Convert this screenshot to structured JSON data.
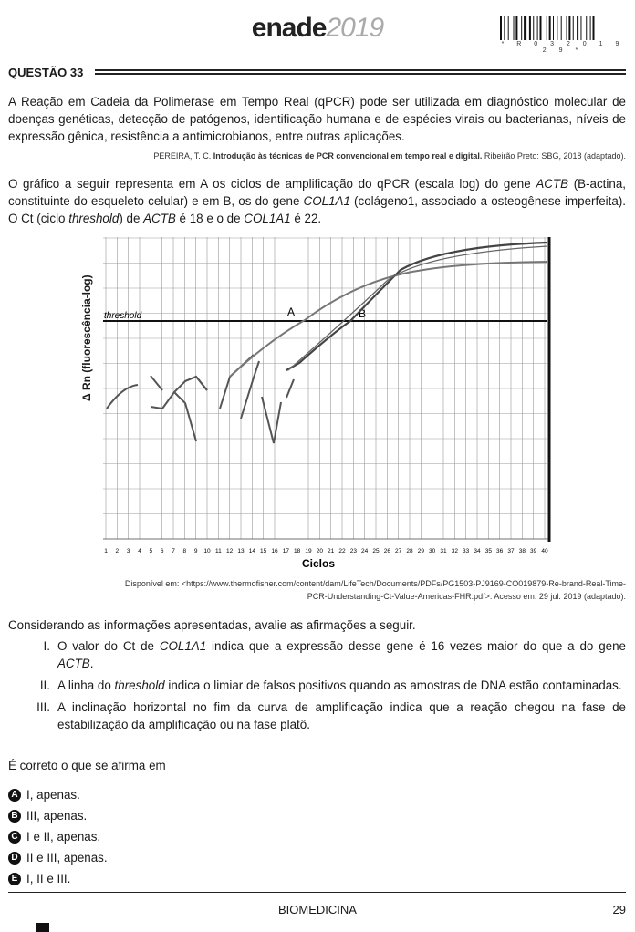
{
  "header": {
    "logo_word": "enade",
    "logo_year": "2019",
    "barcode_text": "* R 0 3 2 0 1 9 2 9 *"
  },
  "question": {
    "title": "QUESTÃO 33",
    "paragraph1": "A Reação em Cadeia da Polimerase em Tempo Real (qPCR) pode ser utilizada em diagnóstico molecular de doenças genéticas, detecção de patógenos, identificação humana e de espécies virais ou bacterianas, níveis de expressão gênica, resistência a antimicrobianos, entre outras aplicações.",
    "ref1_author": "PEREIRA, T. C.",
    "ref1_title": "Introdução às técnicas de PCR convencional em tempo real e digital.",
    "ref1_rest": "Ribeirão Preto: SBG, 2018 (adaptado).",
    "p2_a": "O gráfico a seguir representa em A os ciclos de amplificação do qPCR (escala log) do gene ",
    "p2_b": "ACTB",
    "p2_c": " (B-actina, constituinte do esqueleto celular) e em B, os do gene ",
    "p2_d": "COL1A1",
    "p2_e": " (colágeno1, associado a osteogênese imperfeita). O Ct (ciclo ",
    "p2_f": "threshold",
    "p2_g": ") de ",
    "p2_h": "ACTB",
    "p2_i": " é 18 e o de ",
    "p2_j": "COL1A1",
    "p2_k": " é 22.",
    "source_line1": "Disponível em: <https://www.thermofisher.com/content/dam/LifeTech/Documents/PDFs/PG1503-PJ9169-CO019879-Re-brand-Real-Time-",
    "source_line2": "PCR-Understanding-Ct-Value-Americas-FHR.pdf>. Acesso em: 29 jul. 2019 (adaptado).",
    "prompt": "Considerando as informações apresentadas, avalie as afirmações a seguir.",
    "statements": [
      {
        "num": "I.",
        "a": "O valor do Ct de ",
        "b": "COL1A1",
        "c": " indica que a expressão desse gene é 16 vezes maior do que a do gene ",
        "d": "ACTB",
        "e": "."
      },
      {
        "num": "II.",
        "a": "A linha do ",
        "b": "threshold",
        "c": " indica o limiar de falsos positivos quando as amostras de DNA estão contaminadas."
      },
      {
        "num": "III.",
        "a": "A inclinação horizontal no fim da curva de amplificação indica que a reação chegou na fase de estabilização da amplificação ou na fase platô."
      }
    ],
    "ask": "É correto o que se afirma em",
    "options": [
      {
        "letter": "A",
        "text": "I, apenas."
      },
      {
        "letter": "B",
        "text": "III, apenas."
      },
      {
        "letter": "C",
        "text": "I e II, apenas."
      },
      {
        "letter": "D",
        "text": "II e III, apenas."
      },
      {
        "letter": "E",
        "text": "I, II e III."
      }
    ]
  },
  "chart_data": {
    "type": "line",
    "xlabel": "Ciclos",
    "ylabel": "Δ Rn (fluorescência-log)",
    "x_ticks": [
      1,
      2,
      3,
      4,
      5,
      6,
      7,
      8,
      9,
      10,
      11,
      12,
      13,
      14,
      15,
      16,
      17,
      18,
      19,
      20,
      21,
      22,
      23,
      24,
      25,
      26,
      27,
      28,
      29,
      30,
      31,
      32,
      33,
      34,
      35,
      36,
      37,
      38,
      39,
      40
    ],
    "threshold_label": "threshold",
    "annotations": [
      "A",
      "B"
    ],
    "Ct": {
      "A": 18,
      "B": 22
    },
    "grid": true
  },
  "footer": {
    "subject": "BIOMEDICINA",
    "page": "29"
  }
}
